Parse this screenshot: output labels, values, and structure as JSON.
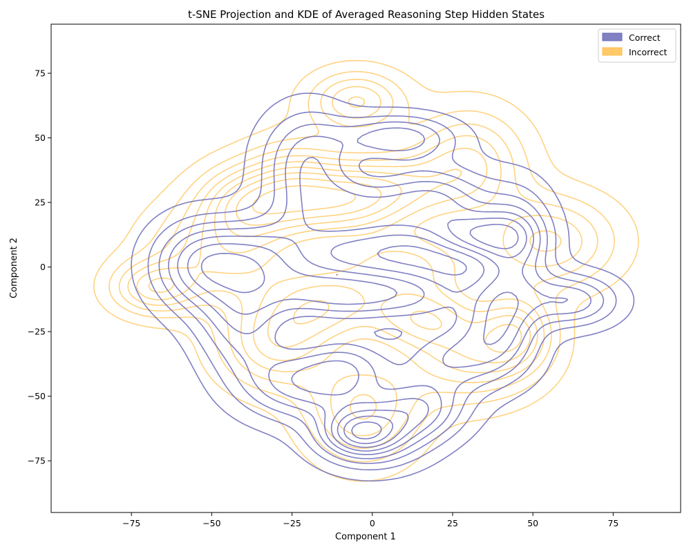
{
  "chart_data": {
    "type": "contour",
    "title": "t-SNE Projection and KDE of Averaged Reasoning Step Hidden States",
    "xlabel": "Component 1",
    "ylabel": "Component 2",
    "xlim": [
      -100,
      96
    ],
    "ylim": [
      -95,
      94
    ],
    "xticks": [
      -75,
      -50,
      -25,
      0,
      25,
      50,
      75
    ],
    "yticks": [
      -75,
      -50,
      -25,
      0,
      25,
      50,
      75
    ],
    "xtick_labels": [
      "−75",
      "−50",
      "−25",
      "0",
      "25",
      "50",
      "75"
    ],
    "ytick_labels": [
      "−75",
      "−50",
      "−25",
      "0",
      "25",
      "50",
      "75"
    ],
    "grid": false,
    "legend_position": "top-right",
    "series": [
      {
        "name": "Correct",
        "color": "#6a6ab8",
        "levels": 9,
        "kde_centers": [
          [
            8,
            50,
            12,
            6
          ],
          [
            33,
            12,
            10,
            6
          ],
          [
            62,
            -13,
            10,
            7
          ],
          [
            -4,
            -64,
            8,
            6
          ],
          [
            -35,
            5,
            14,
            10
          ],
          [
            -20,
            40,
            10,
            14
          ],
          [
            -40,
            -20,
            10,
            14
          ],
          [
            -8,
            -40,
            10,
            10
          ],
          [
            25,
            -35,
            14,
            10
          ],
          [
            40,
            -20,
            8,
            12
          ],
          [
            -5,
            20,
            14,
            10
          ],
          [
            20,
            25,
            12,
            10
          ],
          [
            -15,
            -10,
            14,
            8
          ],
          [
            10,
            -10,
            16,
            8
          ],
          [
            0,
            -65,
            12,
            9
          ],
          [
            45,
            10,
            8,
            14
          ],
          [
            -55,
            0,
            10,
            12
          ],
          [
            15,
            -55,
            10,
            8
          ],
          [
            -25,
            -45,
            12,
            10
          ]
        ]
      },
      {
        "name": "Incorrect",
        "color": "#ffc04d",
        "levels": 9,
        "kde_centers": [
          [
            -68,
            -8,
            9,
            7
          ],
          [
            -5,
            64,
            10,
            8
          ],
          [
            -3,
            -55,
            12,
            14
          ],
          [
            30,
            -35,
            14,
            12
          ],
          [
            -45,
            5,
            16,
            14
          ],
          [
            -30,
            -30,
            12,
            12
          ],
          [
            10,
            0,
            16,
            10
          ],
          [
            30,
            40,
            12,
            14
          ],
          [
            55,
            10,
            14,
            12
          ],
          [
            -10,
            25,
            12,
            10
          ],
          [
            -25,
            30,
            10,
            12
          ],
          [
            15,
            -20,
            12,
            8
          ],
          [
            -40,
            25,
            10,
            10
          ],
          [
            45,
            -25,
            8,
            10
          ],
          [
            5,
            30,
            14,
            10
          ],
          [
            -15,
            -15,
            12,
            10
          ]
        ]
      }
    ],
    "annotations": [
      {
        "x": -11,
        "y": -3,
        "color": "#b05070"
      }
    ]
  }
}
